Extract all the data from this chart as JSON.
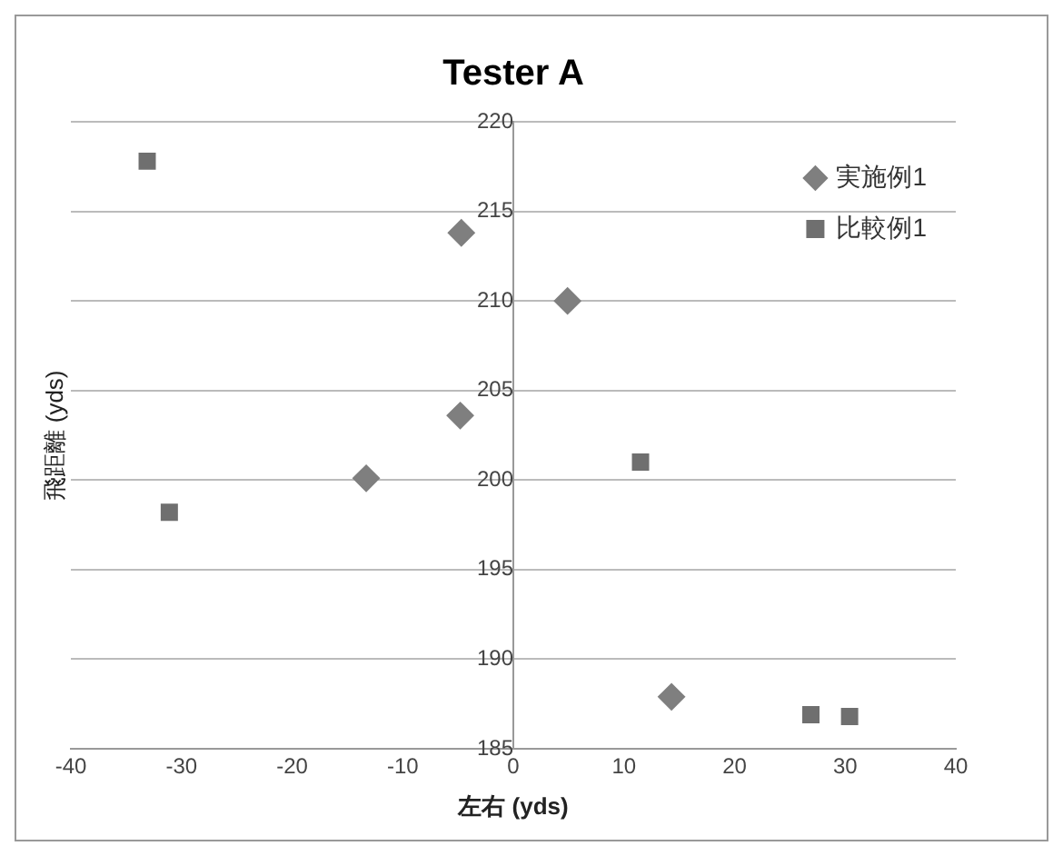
{
  "chart_data": {
    "type": "scatter",
    "title": "Tester A",
    "xlabel": "左右 (yds)",
    "ylabel": "飛距離 (yds)",
    "xlim": [
      -40,
      40
    ],
    "xticks": [
      -40,
      -30,
      -20,
      -10,
      0,
      10,
      20,
      30,
      40
    ],
    "ylim": [
      185,
      220
    ],
    "yticks": [
      185,
      190,
      195,
      200,
      205,
      210,
      215,
      220
    ],
    "grid": "y",
    "legend": "top right",
    "series": [
      {
        "name": "実施例1",
        "color": "#7f7f7f",
        "marker": "diamond",
        "x": [
          -4.7,
          4.9,
          -4.8,
          -13.3,
          14.3
        ],
        "values": [
          213.8,
          210,
          203.6,
          200.1,
          187.9
        ]
      },
      {
        "name": "比較例1",
        "color": "#6f6f6f",
        "marker": "square",
        "x": [
          -33.1,
          -31.1,
          11.5,
          26.9,
          30.4
        ],
        "values": [
          217.8,
          198.2,
          201,
          186.9,
          186.8
        ]
      }
    ]
  }
}
